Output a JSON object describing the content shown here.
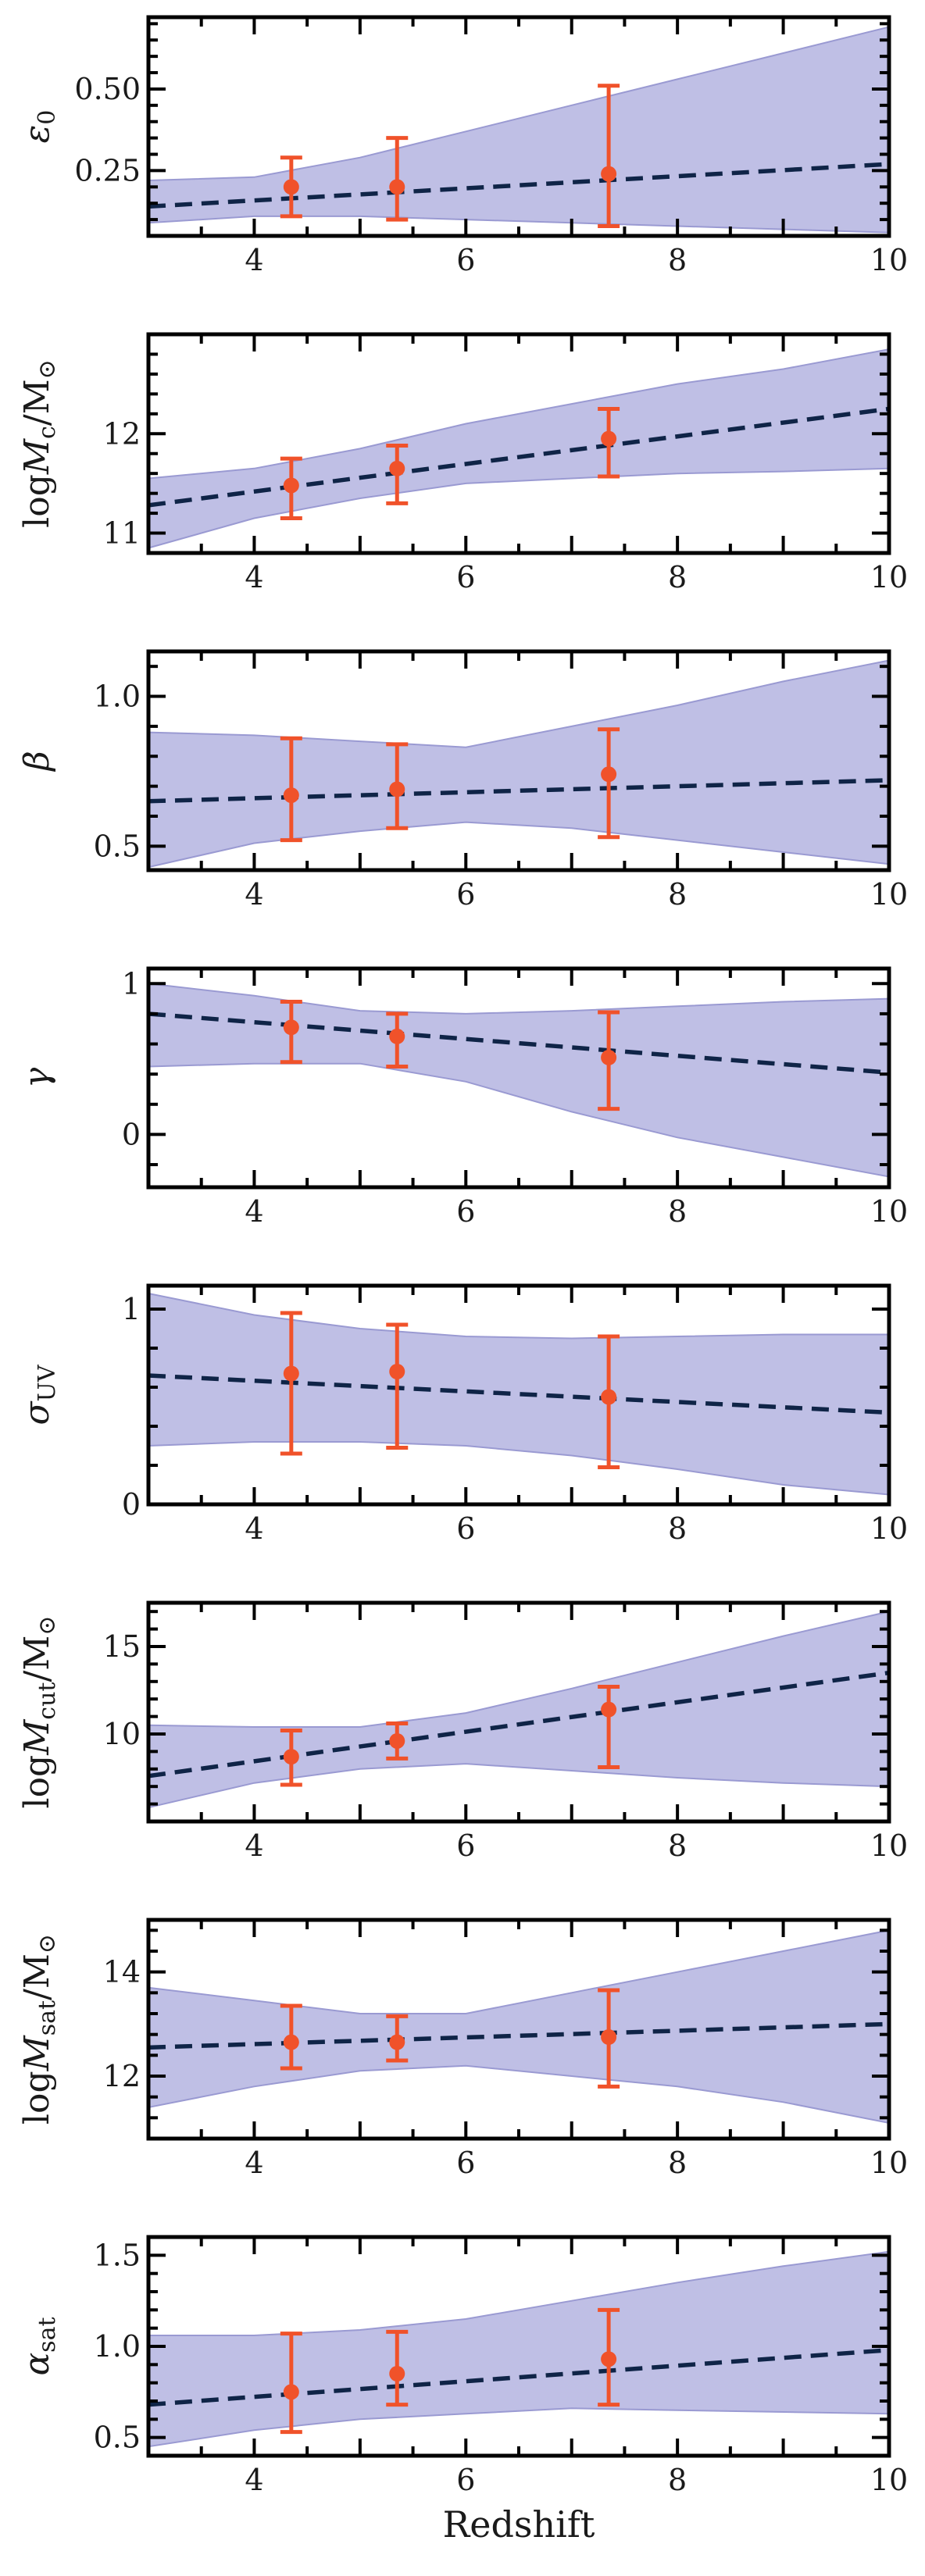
{
  "chart_data": [
    {
      "type": "line",
      "ylabel": "ε0",
      "xlim": [
        3,
        10
      ],
      "ylim": [
        0.05,
        0.72
      ],
      "xticks": [
        4,
        6,
        8,
        10
      ],
      "yticks": [
        0.25,
        0.5
      ],
      "ytick_labels": [
        "0.25",
        "0.50"
      ],
      "trend": {
        "x": [
          3,
          10
        ],
        "y": [
          0.14,
          0.27
        ]
      },
      "band": {
        "x": [
          3,
          4,
          5,
          6,
          7,
          8,
          9,
          10
        ],
        "upper": [
          0.22,
          0.23,
          0.29,
          0.37,
          0.45,
          0.53,
          0.61,
          0.69
        ],
        "lower": [
          0.09,
          0.11,
          0.11,
          0.1,
          0.09,
          0.08,
          0.07,
          0.06
        ]
      },
      "points": [
        {
          "x": 4.35,
          "y": 0.2,
          "lo": 0.11,
          "hi": 0.29
        },
        {
          "x": 5.35,
          "y": 0.2,
          "lo": 0.1,
          "hi": 0.35
        },
        {
          "x": 7.35,
          "y": 0.24,
          "lo": 0.08,
          "hi": 0.51
        }
      ]
    },
    {
      "type": "line",
      "ylabel": "logMc/M⊙",
      "xlim": [
        3,
        10
      ],
      "ylim": [
        10.8,
        13.0
      ],
      "xticks": [
        4,
        6,
        8,
        10
      ],
      "yticks": [
        11,
        12
      ],
      "ytick_labels": [
        "11",
        "12"
      ],
      "trend": {
        "x": [
          3,
          10
        ],
        "y": [
          11.28,
          12.25
        ]
      },
      "band": {
        "x": [
          3,
          4,
          5,
          6,
          7,
          8,
          9,
          10
        ],
        "upper": [
          11.55,
          11.65,
          11.85,
          12.1,
          12.3,
          12.5,
          12.65,
          12.85
        ],
        "lower": [
          10.85,
          11.15,
          11.35,
          11.5,
          11.55,
          11.6,
          11.62,
          11.65
        ]
      },
      "points": [
        {
          "x": 4.35,
          "y": 11.48,
          "lo": 11.15,
          "hi": 11.75
        },
        {
          "x": 5.35,
          "y": 11.65,
          "lo": 11.3,
          "hi": 11.88
        },
        {
          "x": 7.35,
          "y": 11.95,
          "lo": 11.57,
          "hi": 12.25
        }
      ]
    },
    {
      "type": "line",
      "ylabel": "β",
      "xlim": [
        3,
        10
      ],
      "ylim": [
        0.42,
        1.15
      ],
      "xticks": [
        4,
        6,
        8,
        10
      ],
      "yticks": [
        0.5,
        1.0
      ],
      "ytick_labels": [
        "0.5",
        "1.0"
      ],
      "trend": {
        "x": [
          3,
          10
        ],
        "y": [
          0.65,
          0.72
        ]
      },
      "band": {
        "x": [
          3,
          4,
          5,
          6,
          7,
          8,
          9,
          10
        ],
        "upper": [
          0.88,
          0.87,
          0.85,
          0.83,
          0.9,
          0.97,
          1.05,
          1.12
        ],
        "lower": [
          0.43,
          0.51,
          0.55,
          0.58,
          0.56,
          0.52,
          0.48,
          0.44
        ]
      },
      "points": [
        {
          "x": 4.35,
          "y": 0.67,
          "lo": 0.52,
          "hi": 0.86
        },
        {
          "x": 5.35,
          "y": 0.69,
          "lo": 0.56,
          "hi": 0.84
        },
        {
          "x": 7.35,
          "y": 0.74,
          "lo": 0.53,
          "hi": 0.89
        }
      ]
    },
    {
      "type": "line",
      "ylabel": "γ",
      "xlim": [
        3,
        10
      ],
      "ylim": [
        -0.35,
        1.1
      ],
      "xticks": [
        4,
        6,
        8,
        10
      ],
      "yticks": [
        0,
        1
      ],
      "ytick_labels": [
        "0",
        "1"
      ],
      "trend": {
        "x": [
          3,
          10
        ],
        "y": [
          0.8,
          0.41
        ]
      },
      "band": {
        "x": [
          3,
          4,
          5,
          6,
          7,
          8,
          9,
          10
        ],
        "upper": [
          1.0,
          0.92,
          0.82,
          0.8,
          0.82,
          0.85,
          0.88,
          0.9
        ],
        "lower": [
          0.45,
          0.47,
          0.47,
          0.35,
          0.15,
          -0.02,
          -0.15,
          -0.28
        ]
      },
      "points": [
        {
          "x": 4.35,
          "y": 0.71,
          "lo": 0.48,
          "hi": 0.88
        },
        {
          "x": 5.35,
          "y": 0.65,
          "lo": 0.45,
          "hi": 0.8
        },
        {
          "x": 7.35,
          "y": 0.51,
          "lo": 0.17,
          "hi": 0.81
        }
      ]
    },
    {
      "type": "line",
      "ylabel": "σUV",
      "xlim": [
        3,
        10
      ],
      "ylim": [
        0,
        1.12
      ],
      "xticks": [
        4,
        6,
        8,
        10
      ],
      "yticks": [
        0,
        1
      ],
      "ytick_labels": [
        "0",
        "1"
      ],
      "trend": {
        "x": [
          3,
          10
        ],
        "y": [
          0.66,
          0.47
        ]
      },
      "band": {
        "x": [
          3,
          4,
          5,
          6,
          7,
          8,
          9,
          10
        ],
        "upper": [
          1.08,
          0.97,
          0.9,
          0.86,
          0.85,
          0.86,
          0.87,
          0.87
        ],
        "lower": [
          0.3,
          0.32,
          0.32,
          0.3,
          0.25,
          0.18,
          0.1,
          0.05
        ]
      },
      "points": [
        {
          "x": 4.35,
          "y": 0.67,
          "lo": 0.26,
          "hi": 0.98
        },
        {
          "x": 5.35,
          "y": 0.68,
          "lo": 0.29,
          "hi": 0.92
        },
        {
          "x": 7.35,
          "y": 0.55,
          "lo": 0.19,
          "hi": 0.86
        }
      ]
    },
    {
      "type": "line",
      "ylabel": "logMcut/M⊙",
      "xlim": [
        3,
        10
      ],
      "ylim": [
        5,
        17.5
      ],
      "xticks": [
        4,
        6,
        8,
        10
      ],
      "yticks": [
        10,
        15
      ],
      "ytick_labels": [
        "10",
        "15"
      ],
      "trend": {
        "x": [
          3,
          10
        ],
        "y": [
          7.6,
          13.5
        ]
      },
      "band": {
        "x": [
          3,
          4,
          5,
          6,
          7,
          8,
          9,
          10
        ],
        "upper": [
          10.5,
          10.4,
          10.4,
          11.2,
          12.6,
          14.1,
          15.6,
          17.0
        ],
        "lower": [
          5.8,
          7.2,
          8.0,
          8.3,
          7.9,
          7.5,
          7.2,
          7.0
        ]
      },
      "points": [
        {
          "x": 4.35,
          "y": 8.7,
          "lo": 7.1,
          "hi": 10.2
        },
        {
          "x": 5.35,
          "y": 9.6,
          "lo": 8.6,
          "hi": 10.6
        },
        {
          "x": 7.35,
          "y": 11.4,
          "lo": 8.1,
          "hi": 12.7
        }
      ]
    },
    {
      "type": "line",
      "ylabel": "logMsat/M⊙",
      "xlim": [
        3,
        10
      ],
      "ylim": [
        10.8,
        15
      ],
      "xticks": [
        4,
        6,
        8,
        10
      ],
      "yticks": [
        12,
        14
      ],
      "ytick_labels": [
        "12",
        "14"
      ],
      "trend": {
        "x": [
          3,
          10
        ],
        "y": [
          12.55,
          13.0
        ]
      },
      "band": {
        "x": [
          3,
          4,
          5,
          6,
          7,
          8,
          9,
          10
        ],
        "upper": [
          13.7,
          13.45,
          13.2,
          13.2,
          13.6,
          14.0,
          14.4,
          14.8
        ],
        "lower": [
          11.4,
          11.8,
          12.1,
          12.2,
          12.0,
          11.8,
          11.5,
          11.1
        ]
      },
      "points": [
        {
          "x": 4.35,
          "y": 12.65,
          "lo": 12.15,
          "hi": 13.35
        },
        {
          "x": 5.35,
          "y": 12.65,
          "lo": 12.3,
          "hi": 13.15
        },
        {
          "x": 7.35,
          "y": 12.75,
          "lo": 11.8,
          "hi": 13.65
        }
      ]
    },
    {
      "type": "line",
      "ylabel": "αsat",
      "xlabel": "Redshift",
      "xlim": [
        3,
        10
      ],
      "ylim": [
        0.4,
        1.6
      ],
      "xticks": [
        4,
        6,
        8,
        10
      ],
      "yticks": [
        0.5,
        1.0,
        1.5
      ],
      "ytick_labels": [
        "0.5",
        "1.0",
        "1.5"
      ],
      "trend": {
        "x": [
          3,
          10
        ],
        "y": [
          0.68,
          0.98
        ]
      },
      "band": {
        "x": [
          3,
          4,
          5,
          6,
          7,
          8,
          9,
          10
        ],
        "upper": [
          1.06,
          1.06,
          1.09,
          1.15,
          1.25,
          1.35,
          1.44,
          1.52
        ],
        "lower": [
          0.45,
          0.54,
          0.6,
          0.63,
          0.66,
          0.65,
          0.64,
          0.63
        ]
      },
      "points": [
        {
          "x": 4.35,
          "y": 0.75,
          "lo": 0.53,
          "hi": 1.07
        },
        {
          "x": 5.35,
          "y": 0.85,
          "lo": 0.68,
          "hi": 1.08
        },
        {
          "x": 7.35,
          "y": 0.93,
          "lo": 0.68,
          "hi": 1.2
        }
      ]
    }
  ]
}
